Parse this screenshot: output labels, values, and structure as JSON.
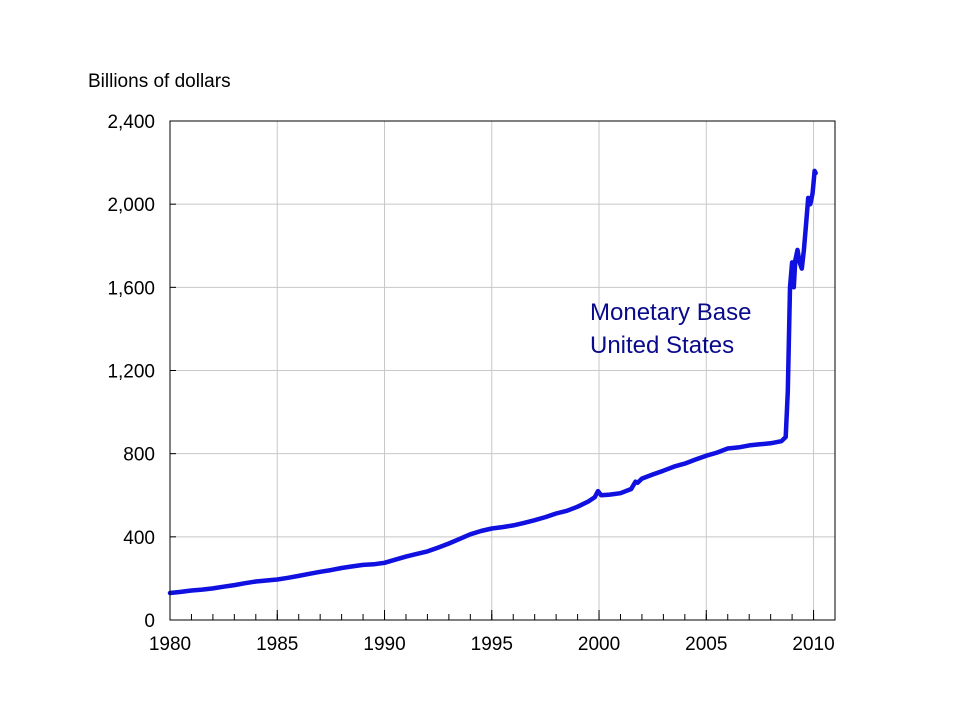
{
  "chart_data": {
    "type": "line",
    "ylabel": "Billions of dollars",
    "annotation": [
      "Monetary Base",
      "United States"
    ],
    "xlim": [
      1980,
      2011
    ],
    "ylim": [
      0,
      2400
    ],
    "x_ticks": [
      1980,
      1985,
      1990,
      1995,
      2000,
      2005,
      2010
    ],
    "x_tick_labels": [
      "1980",
      "1985",
      "1990",
      "1995",
      "2000",
      "2005",
      "2010"
    ],
    "y_ticks": [
      0,
      400,
      800,
      1200,
      1600,
      2000,
      2400
    ],
    "y_tick_labels": [
      "0",
      "400",
      "800",
      "1,200",
      "1,600",
      "2,000",
      "2,400"
    ],
    "grid": true,
    "colors": {
      "line": "#1010e0",
      "annotation": "#0a0a8c",
      "grid": "#c8c8c8"
    },
    "series": [
      {
        "x": [
          1980.0,
          1980.5,
          1981.0,
          1981.5,
          1982.0,
          1982.5,
          1983.0,
          1983.5,
          1984.0,
          1984.5,
          1985.0,
          1985.5,
          1986.0,
          1986.5,
          1987.0,
          1987.5,
          1988.0,
          1988.5,
          1989.0,
          1989.5,
          1990.0,
          1990.5,
          1991.0,
          1991.5,
          1992.0,
          1992.5,
          1993.0,
          1993.5,
          1994.0,
          1994.5,
          1995.0,
          1995.5,
          1996.0,
          1996.5,
          1997.0,
          1997.5,
          1998.0,
          1998.5,
          1999.0,
          1999.5,
          1999.8,
          1999.95,
          2000.1,
          2000.5,
          2001.0,
          2001.5,
          2001.7,
          2001.8,
          2002.0,
          2002.5,
          2003.0,
          2003.5,
          2004.0,
          2004.5,
          2005.0,
          2005.5,
          2006.0,
          2006.5,
          2007.0,
          2007.5,
          2008.0,
          2008.5,
          2008.7,
          2008.8,
          2008.9,
          2009.0,
          2009.08,
          2009.15,
          2009.25,
          2009.35,
          2009.45,
          2009.55,
          2009.65,
          2009.75,
          2009.85,
          2009.95,
          2010.0,
          2010.05,
          2010.1
        ],
        "y": [
          130,
          135,
          142,
          146,
          152,
          160,
          168,
          177,
          185,
          190,
          195,
          203,
          212,
          222,
          232,
          240,
          250,
          258,
          265,
          268,
          275,
          290,
          305,
          318,
          330,
          348,
          368,
          390,
          412,
          428,
          440,
          447,
          455,
          467,
          480,
          495,
          512,
          525,
          545,
          570,
          590,
          620,
          600,
          603,
          610,
          630,
          665,
          660,
          680,
          700,
          718,
          738,
          752,
          772,
          790,
          805,
          825,
          830,
          840,
          845,
          850,
          860,
          880,
          1100,
          1600,
          1720,
          1600,
          1730,
          1780,
          1720,
          1690,
          1780,
          1900,
          2030,
          2000,
          2050,
          2100,
          2160,
          2150
        ]
      }
    ]
  }
}
